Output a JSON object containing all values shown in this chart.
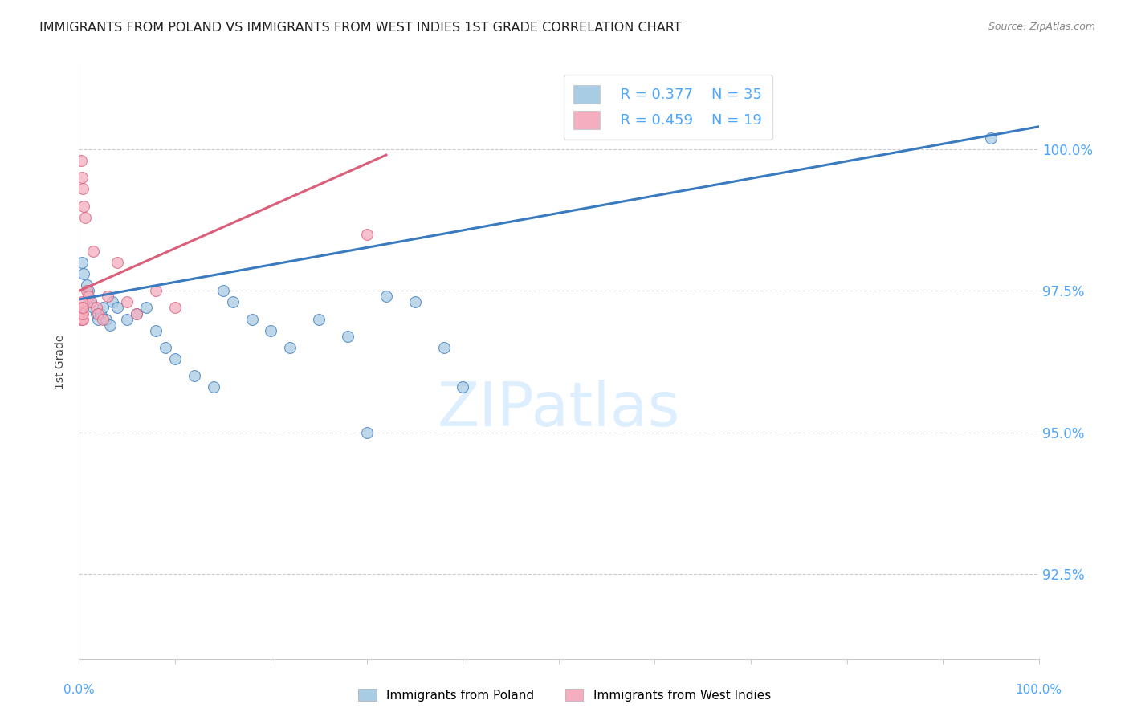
{
  "title": "IMMIGRANTS FROM POLAND VS IMMIGRANTS FROM WEST INDIES 1ST GRADE CORRELATION CHART",
  "source": "Source: ZipAtlas.com",
  "ylabel": "1st Grade",
  "legend_blue_R": "R = 0.377",
  "legend_blue_N": "N = 35",
  "legend_pink_R": "R = 0.459",
  "legend_pink_N": "N = 19",
  "blue_color": "#a8cce4",
  "pink_color": "#f4aec0",
  "blue_line_color": "#3a7bbf",
  "pink_line_color": "#d95f7a",
  "axis_label_color": "#4da6ff",
  "title_color": "#222222",
  "watermark_color": "#ddeeff",
  "xlim": [
    0.0,
    100.0
  ],
  "ylim": [
    91.0,
    101.5
  ],
  "yticks": [
    92.5,
    95.0,
    97.5,
    100.0
  ],
  "ytick_labels": [
    "92.5%",
    "95.0%",
    "97.5%",
    "100.0%"
  ],
  "blue_x": [
    0.3,
    0.5,
    0.8,
    1.0,
    1.2,
    1.5,
    1.8,
    2.0,
    2.2,
    2.5,
    2.8,
    3.2,
    3.5,
    4.0,
    5.0,
    6.0,
    7.0,
    8.0,
    9.0,
    10.0,
    12.0,
    14.0,
    15.0,
    16.0,
    18.0,
    20.0,
    22.0,
    25.0,
    28.0,
    30.0,
    32.0,
    35.0,
    38.0,
    40.0,
    95.0
  ],
  "blue_y": [
    98.0,
    97.8,
    97.6,
    97.5,
    97.3,
    97.2,
    97.1,
    97.0,
    97.1,
    97.2,
    97.0,
    96.9,
    97.3,
    97.2,
    97.0,
    97.1,
    97.2,
    96.8,
    96.5,
    96.3,
    96.0,
    95.8,
    97.5,
    97.3,
    97.0,
    96.8,
    96.5,
    97.0,
    96.7,
    95.0,
    97.4,
    97.3,
    96.5,
    95.8,
    100.2
  ],
  "pink_x": [
    0.2,
    0.3,
    0.4,
    0.5,
    0.6,
    0.8,
    1.0,
    1.2,
    1.5,
    1.8,
    2.0,
    2.5,
    3.0,
    4.0,
    5.0,
    6.0,
    8.0,
    10.0,
    30.0
  ],
  "pink_y": [
    99.8,
    99.5,
    99.3,
    99.0,
    98.8,
    97.5,
    97.4,
    97.3,
    98.2,
    97.2,
    97.1,
    97.0,
    97.4,
    98.0,
    97.3,
    97.1,
    97.5,
    97.2,
    98.5
  ],
  "pink_cluster_x": [
    0.2,
    0.2,
    0.2,
    0.3,
    0.3,
    0.3,
    0.3,
    0.4,
    0.4,
    0.4
  ],
  "pink_cluster_y": [
    97.0,
    97.1,
    97.2,
    97.0,
    97.1,
    97.2,
    97.3,
    97.0,
    97.1,
    97.2
  ],
  "blue_trendline_x": [
    0.0,
    100.0
  ],
  "blue_trendline_y": [
    97.35,
    100.4
  ],
  "pink_trendline_x": [
    0.0,
    32.0
  ],
  "pink_trendline_y": [
    97.5,
    99.9
  ],
  "marker_size": 100
}
